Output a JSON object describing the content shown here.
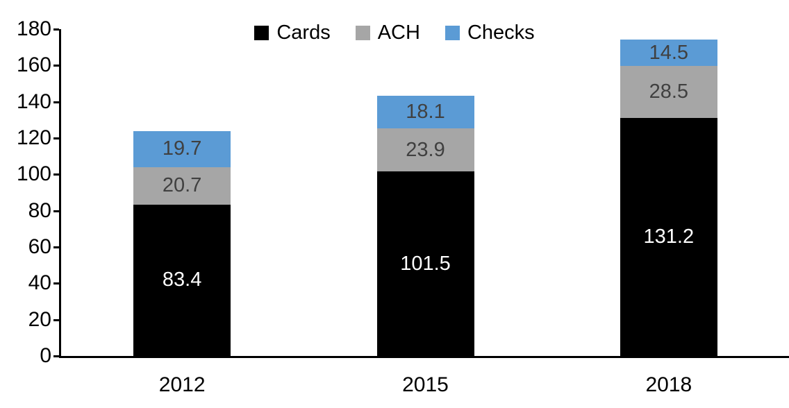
{
  "chart_data": {
    "type": "bar",
    "stacked": true,
    "title": "",
    "xlabel": "",
    "ylabel": "",
    "categories": [
      "2012",
      "2015",
      "2018"
    ],
    "series": [
      {
        "name": "Cards",
        "color": "#000000",
        "label_color": "#ffffff",
        "values": [
          83.4,
          101.5,
          131.2
        ]
      },
      {
        "name": "ACH",
        "color": "#a6a6a6",
        "label_color": "#404040",
        "values": [
          20.7,
          23.9,
          28.5
        ]
      },
      {
        "name": "Checks",
        "color": "#5b9bd5",
        "label_color": "#404040",
        "values": [
          19.7,
          18.1,
          14.5
        ]
      }
    ],
    "stack_totals": [
      123.8,
      143.5,
      174.2
    ],
    "ylim": [
      0,
      180
    ],
    "ytick_step": 20,
    "yticks": [
      0,
      20,
      40,
      60,
      80,
      100,
      120,
      140,
      160,
      180
    ],
    "legend_position": "top-center",
    "legend_order": [
      "Cards",
      "ACH",
      "Checks"
    ],
    "grid": false,
    "data_labels": "center",
    "axis_color": "#000000",
    "background_color": "#ffffff"
  }
}
